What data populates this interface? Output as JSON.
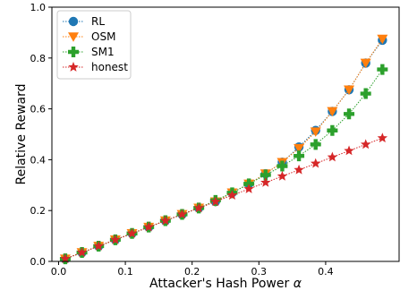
{
  "chart_data": {
    "type": "line",
    "xlabel": "Attacker's Hash Power",
    "xlabel_symbol": "α",
    "ylabel": "Relative Reward",
    "xlim": [
      -0.01,
      0.51
    ],
    "ylim": [
      0.0,
      1.0
    ],
    "xticks": [
      "0.0",
      "0.1",
      "0.2",
      "0.3",
      "0.4"
    ],
    "yticks": [
      "0.0",
      "0.2",
      "0.4",
      "0.6",
      "0.8",
      "1.0"
    ],
    "grid": false,
    "legend_position": "top-left",
    "x": [
      0.01,
      0.035,
      0.06,
      0.085,
      0.11,
      0.135,
      0.16,
      0.185,
      0.21,
      0.235,
      0.26,
      0.285,
      0.31,
      0.335,
      0.36,
      0.385,
      0.41,
      0.435,
      0.46,
      0.485
    ],
    "series": [
      {
        "name": "RL",
        "marker": "circle",
        "color": "#1f77b4",
        "values": [
          0.01,
          0.035,
          0.06,
          0.085,
          0.11,
          0.135,
          0.16,
          0.185,
          0.21,
          0.235,
          0.27,
          0.305,
          0.345,
          0.39,
          0.45,
          0.515,
          0.59,
          0.675,
          0.78,
          0.87
        ]
      },
      {
        "name": "OSM",
        "marker": "triangle-down",
        "color": "#ff7f0e",
        "values": [
          0.01,
          0.035,
          0.06,
          0.085,
          0.11,
          0.135,
          0.16,
          0.185,
          0.21,
          0.235,
          0.27,
          0.305,
          0.345,
          0.39,
          0.445,
          0.51,
          0.59,
          0.675,
          0.78,
          0.875
        ]
      },
      {
        "name": "SM1",
        "marker": "plus",
        "color": "#2ca02c",
        "values": [
          0.01,
          0.035,
          0.06,
          0.085,
          0.11,
          0.135,
          0.16,
          0.185,
          0.21,
          0.24,
          0.27,
          0.305,
          0.34,
          0.375,
          0.415,
          0.46,
          0.515,
          0.58,
          0.66,
          0.755
        ]
      },
      {
        "name": "honest",
        "marker": "star",
        "color": "#d62728",
        "values": [
          0.01,
          0.035,
          0.06,
          0.085,
          0.11,
          0.135,
          0.16,
          0.185,
          0.21,
          0.235,
          0.26,
          0.285,
          0.31,
          0.335,
          0.36,
          0.385,
          0.41,
          0.435,
          0.46,
          0.485
        ]
      }
    ]
  }
}
